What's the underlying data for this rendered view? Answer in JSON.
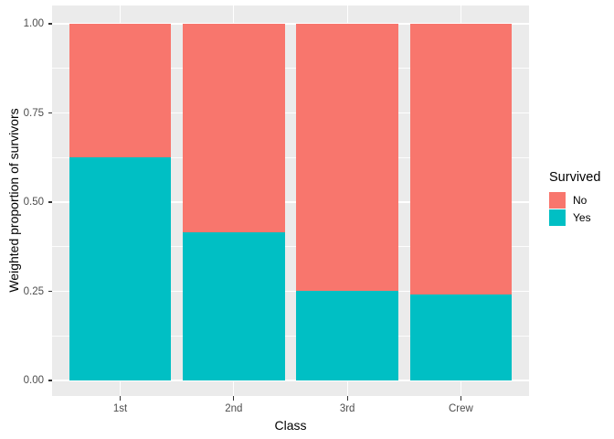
{
  "chart_data": {
    "type": "bar",
    "subtype": "stacked-proportion",
    "title": "",
    "xlabel": "Class",
    "ylabel": "Weighted proportion of survivors",
    "categories": [
      "1st",
      "2nd",
      "3rd",
      "Crew"
    ],
    "series": [
      {
        "name": "Yes",
        "color": "#00BFC4",
        "values": [
          0.625,
          0.415,
          0.252,
          0.24
        ]
      },
      {
        "name": "No",
        "color": "#F8766D",
        "values": [
          0.375,
          0.585,
          0.748,
          0.76
        ]
      }
    ],
    "stack_order_bottom_to_top": [
      "Yes",
      "No"
    ],
    "ylim": [
      0,
      1
    ],
    "ytick_values": [
      0,
      0.25,
      0.5,
      0.75,
      1
    ],
    "ytick_labels": [
      "0.00",
      "0.25",
      "0.50",
      "0.75",
      "1.00"
    ],
    "minor_gridline_values": [
      0.125,
      0.375,
      0.625,
      0.875
    ],
    "grid": "white major+minor horizontal lines and vertical major lines on gray panel",
    "legend": {
      "title": "Survived",
      "position": "right",
      "entries": [
        {
          "label": "No",
          "color": "#F8766D"
        },
        {
          "label": "Yes",
          "color": "#00BFC4"
        }
      ]
    }
  },
  "style": {
    "panel_background": "#EBEBEB",
    "grid_color": "#FFFFFF",
    "color_no": "#F8766D",
    "color_yes": "#00BFC4",
    "tick_label_color": "#4D4D4D",
    "axis_title_color": "#000000",
    "tick_mark_color": "#333333",
    "figure_background": "#FFFFFF"
  }
}
